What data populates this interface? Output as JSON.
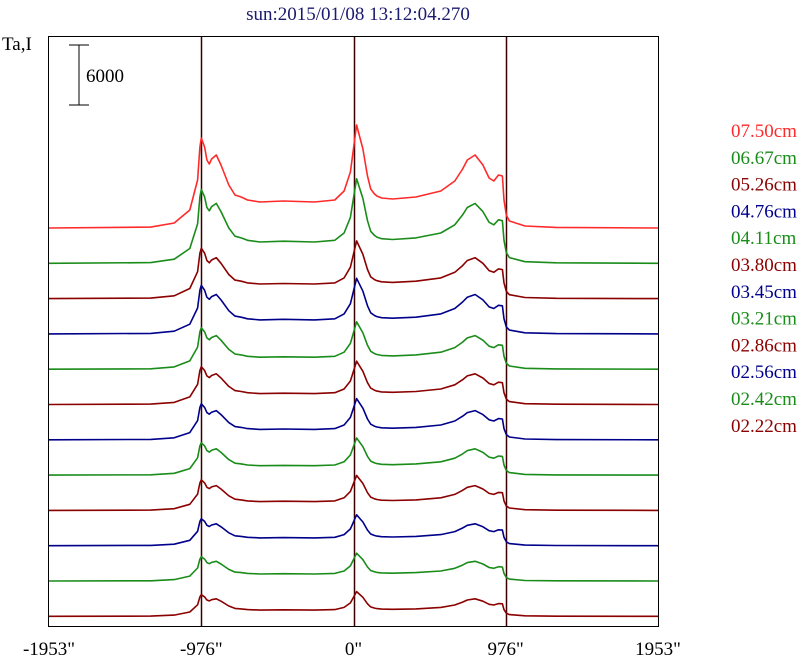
{
  "chart_data": {
    "type": "line",
    "title": "sun:2015/01/08 13:12:04.270",
    "ylabel": "Ta,I",
    "scale_bar_label": "6000",
    "scale_bar_value": 6000,
    "x_ticks": [
      {
        "value": -1953,
        "label": "-1953\""
      },
      {
        "value": -976,
        "label": "-976\""
      },
      {
        "value": 0,
        "label": "0\""
      },
      {
        "value": 976,
        "label": "976\""
      },
      {
        "value": 1953,
        "label": "1953\""
      }
    ],
    "xlim": [
      -1953,
      1953
    ],
    "vertical_lines_at": [
      -976,
      0,
      976
    ],
    "x": [
      -1953,
      -1300,
      -1150,
      -1050,
      -1000,
      -985,
      -976,
      -955,
      -940,
      -925,
      -910,
      -880,
      -850,
      -800,
      -760,
      -720,
      -680,
      -600,
      -450,
      -250,
      -120,
      -60,
      -20,
      20,
      60,
      90,
      110,
      135,
      150,
      180,
      250,
      400,
      560,
      650,
      700,
      730,
      780,
      830,
      870,
      900,
      930,
      955,
      965,
      980,
      1000,
      1100,
      1300,
      1953
    ],
    "series": [
      {
        "name": "07.50cm",
        "color": "#ff2a2a",
        "peak_scale": 1.0,
        "values": [
          0,
          90,
          500,
          1800,
          4800,
          8100,
          9000,
          8100,
          6800,
          6400,
          6900,
          7300,
          6300,
          4300,
          3300,
          3100,
          2800,
          2600,
          2700,
          2600,
          2800,
          3700,
          5600,
          10300,
          7900,
          5200,
          3900,
          3400,
          3200,
          3000,
          2900,
          3100,
          3700,
          4700,
          5900,
          6800,
          7300,
          6300,
          5000,
          4700,
          5300,
          5200,
          2800,
          1300,
          700,
          200,
          60,
          0
        ]
      },
      {
        "name": "06.67cm",
        "color": "#1a8c1a",
        "peak_scale": 0.82,
        "values": [
          0,
          90,
          500,
          1800,
          4800,
          8100,
          9000,
          8100,
          6800,
          6400,
          6900,
          7300,
          6300,
          4300,
          3300,
          3100,
          2800,
          2600,
          2700,
          2600,
          2800,
          3700,
          5600,
          10300,
          7900,
          5200,
          3900,
          3400,
          3200,
          3000,
          2900,
          3100,
          3700,
          4700,
          5900,
          6800,
          7300,
          6300,
          5000,
          4700,
          5300,
          5200,
          2800,
          1300,
          700,
          200,
          60,
          0
        ]
      },
      {
        "name": "05.26cm",
        "color": "#8b0000",
        "peak_scale": 0.56,
        "values": [
          0,
          90,
          500,
          1800,
          4800,
          8100,
          9000,
          8100,
          6800,
          6400,
          6900,
          7300,
          6300,
          4300,
          3300,
          3100,
          2800,
          2600,
          2700,
          2600,
          2800,
          3700,
          5600,
          10300,
          7900,
          5200,
          3900,
          3400,
          3200,
          3000,
          2900,
          3100,
          3700,
          4700,
          5900,
          6800,
          7300,
          6300,
          5000,
          4700,
          5300,
          5200,
          2800,
          1300,
          700,
          200,
          60,
          0
        ]
      },
      {
        "name": "04.76cm",
        "color": "#00008b",
        "peak_scale": 0.54,
        "values": [
          0,
          90,
          500,
          1800,
          4800,
          8100,
          9000,
          8100,
          6800,
          6400,
          6900,
          7300,
          6300,
          4300,
          3300,
          3100,
          2800,
          2600,
          2700,
          2600,
          2800,
          3700,
          5600,
          10300,
          7900,
          5200,
          3900,
          3400,
          3200,
          3000,
          2900,
          3100,
          3700,
          4700,
          5900,
          6800,
          7300,
          6300,
          5000,
          4700,
          5300,
          5200,
          2800,
          1300,
          700,
          200,
          60,
          0
        ]
      },
      {
        "name": "04.11cm",
        "color": "#1a8c1a",
        "peak_scale": 0.46,
        "values": [
          0,
          90,
          500,
          1800,
          4800,
          8100,
          9000,
          8100,
          6800,
          6400,
          6900,
          7300,
          6300,
          4300,
          3300,
          3100,
          2800,
          2600,
          2700,
          2600,
          2800,
          3700,
          5600,
          10300,
          7900,
          5200,
          3900,
          3400,
          3200,
          3000,
          2900,
          3100,
          3700,
          4700,
          5900,
          6800,
          7300,
          6300,
          5000,
          4700,
          5300,
          5200,
          2800,
          1300,
          700,
          200,
          60,
          0
        ]
      },
      {
        "name": "03.80cm",
        "color": "#8b0000",
        "peak_scale": 0.42,
        "values": [
          0,
          90,
          500,
          1800,
          4800,
          8100,
          9000,
          8100,
          6800,
          6400,
          6900,
          7300,
          6300,
          4300,
          3300,
          3100,
          2800,
          2600,
          2700,
          2600,
          2800,
          3700,
          5600,
          10300,
          7900,
          5200,
          3900,
          3400,
          3200,
          3000,
          2900,
          3100,
          3700,
          4700,
          5900,
          6800,
          7300,
          6300,
          5000,
          4700,
          5300,
          5200,
          2800,
          1300,
          700,
          200,
          60,
          0
        ]
      },
      {
        "name": "03.45cm",
        "color": "#00008b",
        "peak_scale": 0.4,
        "values": [
          0,
          90,
          500,
          1800,
          4800,
          8100,
          9000,
          8100,
          6800,
          6400,
          6900,
          7300,
          6300,
          4300,
          3300,
          3100,
          2800,
          2600,
          2700,
          2600,
          2800,
          3700,
          5600,
          10300,
          7900,
          5200,
          3900,
          3400,
          3200,
          3000,
          2900,
          3100,
          3700,
          4700,
          5900,
          6800,
          7300,
          6300,
          5000,
          4700,
          5300,
          5200,
          2800,
          1300,
          700,
          200,
          60,
          0
        ]
      },
      {
        "name": "03.21cm",
        "color": "#1a8c1a",
        "peak_scale": 0.36,
        "values": [
          0,
          90,
          500,
          1800,
          4800,
          8100,
          9000,
          8100,
          6800,
          6400,
          6900,
          7300,
          6300,
          4300,
          3300,
          3100,
          2800,
          2600,
          2700,
          2600,
          2800,
          3700,
          5600,
          10300,
          7900,
          5200,
          3900,
          3400,
          3200,
          3000,
          2900,
          3100,
          3700,
          4700,
          5900,
          6800,
          7300,
          6300,
          5000,
          4700,
          5300,
          5200,
          2800,
          1300,
          700,
          200,
          60,
          0
        ]
      },
      {
        "name": "02.86cm",
        "color": "#8b0000",
        "peak_scale": 0.34,
        "values": [
          0,
          90,
          500,
          1800,
          4800,
          8100,
          9000,
          8100,
          6800,
          6400,
          6900,
          7300,
          6300,
          4300,
          3300,
          3100,
          2800,
          2600,
          2700,
          2600,
          2800,
          3700,
          5600,
          10300,
          7900,
          5200,
          3900,
          3400,
          3200,
          3000,
          2900,
          3100,
          3700,
          4700,
          5900,
          6800,
          7300,
          6300,
          5000,
          4700,
          5300,
          5200,
          2800,
          1300,
          700,
          200,
          60,
          0
        ]
      },
      {
        "name": "02.56cm",
        "color": "#00008b",
        "peak_scale": 0.3,
        "values": [
          0,
          90,
          500,
          1800,
          4800,
          8100,
          9000,
          8100,
          6800,
          6400,
          6900,
          7300,
          6300,
          4300,
          3300,
          3100,
          2800,
          2600,
          2700,
          2600,
          2800,
          3700,
          5600,
          10300,
          7900,
          5200,
          3900,
          3400,
          3200,
          3000,
          2900,
          3100,
          3700,
          4700,
          5900,
          6800,
          7300,
          6300,
          5000,
          4700,
          5300,
          5200,
          2800,
          1300,
          700,
          200,
          60,
          0
        ]
      },
      {
        "name": "02.42cm",
        "color": "#1a8c1a",
        "peak_scale": 0.27,
        "values": [
          0,
          90,
          500,
          1800,
          4800,
          8100,
          9000,
          8100,
          6800,
          6400,
          6900,
          7300,
          6300,
          4300,
          3300,
          3100,
          2800,
          2600,
          2700,
          2600,
          2800,
          3700,
          5600,
          10300,
          7900,
          5200,
          3900,
          3400,
          3200,
          3000,
          2900,
          3100,
          3700,
          4700,
          5900,
          6800,
          7300,
          6300,
          5000,
          4700,
          5300,
          5200,
          2800,
          1300,
          700,
          200,
          60,
          0
        ]
      },
      {
        "name": "02.22cm",
        "color": "#8b0000",
        "peak_scale": 0.24,
        "values": [
          0,
          90,
          500,
          1800,
          4800,
          8100,
          9000,
          8100,
          6800,
          6400,
          6900,
          7300,
          6300,
          4300,
          3300,
          3100,
          2800,
          2600,
          2700,
          2600,
          2800,
          3700,
          5600,
          10300,
          7900,
          5200,
          3900,
          3400,
          3200,
          3000,
          2900,
          3100,
          3700,
          4700,
          5900,
          6800,
          7300,
          6300,
          5000,
          4700,
          5300,
          5200,
          2800,
          1300,
          700,
          200,
          60,
          0
        ]
      }
    ],
    "legend_placement": "right",
    "grid": false
  }
}
